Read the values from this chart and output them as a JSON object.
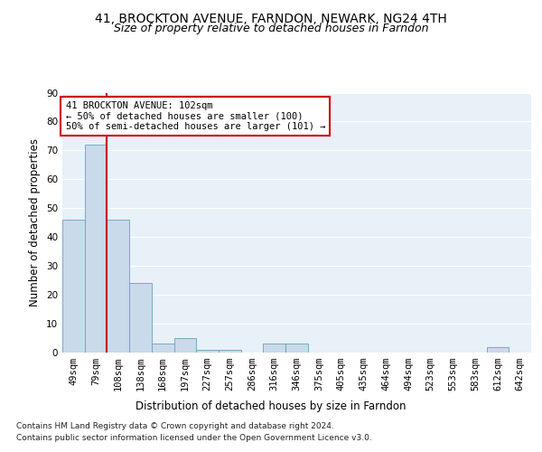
{
  "title1": "41, BROCKTON AVENUE, FARNDON, NEWARK, NG24 4TH",
  "title2": "Size of property relative to detached houses in Farndon",
  "xlabel": "Distribution of detached houses by size in Farndon",
  "ylabel": "Number of detached properties",
  "categories": [
    "49sqm",
    "79sqm",
    "108sqm",
    "138sqm",
    "168sqm",
    "197sqm",
    "227sqm",
    "257sqm",
    "286sqm",
    "316sqm",
    "346sqm",
    "375sqm",
    "405sqm",
    "435sqm",
    "464sqm",
    "494sqm",
    "523sqm",
    "553sqm",
    "583sqm",
    "612sqm",
    "642sqm"
  ],
  "values": [
    46,
    72,
    46,
    24,
    3,
    5,
    1,
    1,
    0,
    3,
    3,
    0,
    0,
    0,
    0,
    0,
    0,
    0,
    0,
    2,
    0
  ],
  "bar_color": "#c9daea",
  "bar_edge_color": "#6a9fc0",
  "vline_x": 1.5,
  "vline_color": "#cc0000",
  "annotation_text": "41 BROCKTON AVENUE: 102sqm\n← 50% of detached houses are smaller (100)\n50% of semi-detached houses are larger (101) →",
  "annotation_box_color": "#cc0000",
  "background_color": "#e8f0f8",
  "grid_color": "#ffffff",
  "ylim": [
    0,
    90
  ],
  "yticks": [
    0,
    10,
    20,
    30,
    40,
    50,
    60,
    70,
    80,
    90
  ],
  "footer1": "Contains HM Land Registry data © Crown copyright and database right 2024.",
  "footer2": "Contains public sector information licensed under the Open Government Licence v3.0.",
  "title1_fontsize": 10,
  "title2_fontsize": 9,
  "axis_fontsize": 8.5,
  "tick_fontsize": 7.5,
  "footer_fontsize": 6.5,
  "annotation_fontsize": 7.5
}
